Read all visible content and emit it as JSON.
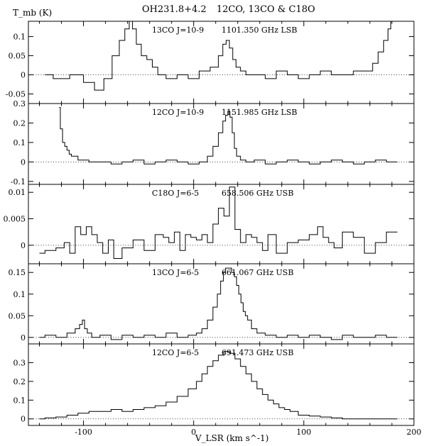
{
  "header": {
    "source": "OH231.8+4.2",
    "lines": "12CO, 13CO & C18O"
  },
  "axes": {
    "xlabel": "V_LSR (km s^-1)",
    "ylabel": "T_mb (K)"
  },
  "chart_data": [
    {
      "type": "line",
      "title": "13CO J=10-9  1101.350 GHz LSB",
      "line": "13CO J=10-9",
      "freq": "1101.350 GHz LSB",
      "xlim": [
        -150,
        200
      ],
      "ylim": [
        -0.075,
        0.14
      ],
      "yticks": [
        -0.05,
        0,
        0.05,
        0.1
      ],
      "yticklabels": [
        "-0.05",
        "0",
        "0.05",
        "0.1"
      ],
      "xticks": [
        -100,
        0,
        100,
        200
      ],
      "baseline": 0,
      "x": [
        -135,
        -120,
        -105,
        -95,
        -85,
        -78,
        -70,
        -65,
        -60,
        -57,
        -54,
        -50,
        -45,
        -40,
        -35,
        -30,
        -20,
        -10,
        0,
        10,
        20,
        25,
        28,
        31,
        34,
        37,
        40,
        45,
        50,
        60,
        70,
        80,
        90,
        100,
        110,
        120,
        130,
        140,
        150,
        160,
        165,
        170,
        175,
        178,
        180
      ],
      "y": [
        0.0,
        -0.01,
        0.0,
        -0.02,
        -0.04,
        -0.01,
        0.05,
        0.09,
        0.12,
        0.14,
        0.12,
        0.08,
        0.05,
        0.04,
        0.02,
        0.0,
        -0.01,
        0.0,
        -0.01,
        0.01,
        0.02,
        0.05,
        0.08,
        0.09,
        0.07,
        0.04,
        0.02,
        0.01,
        0.0,
        0.0,
        -0.01,
        0.01,
        0.0,
        -0.01,
        0.0,
        0.01,
        0.0,
        0.0,
        0.01,
        0.01,
        0.03,
        0.06,
        0.09,
        0.12,
        0.14
      ]
    },
    {
      "type": "line",
      "title": "12CO J=10-9  1151.985 GHz LSB",
      "line": "12CO J=10-9",
      "freq": "1151.985 GHz LSB",
      "xlim": [
        -150,
        200
      ],
      "ylim": [
        -0.115,
        0.3
      ],
      "yticks": [
        -0.1,
        0,
        0.1,
        0.2,
        0.3
      ],
      "yticklabels": [
        "-0.1",
        "0",
        "0.1",
        "0.2",
        "0.3"
      ],
      "xticks": [
        -100,
        0,
        100,
        200
      ],
      "baseline": 0,
      "x": [
        -122,
        -120,
        -118,
        -116,
        -114,
        -112,
        -110,
        -100,
        -90,
        -80,
        -70,
        -60,
        -50,
        -40,
        -30,
        -20,
        -10,
        0,
        10,
        15,
        20,
        25,
        28,
        30,
        32,
        34,
        36,
        38,
        40,
        45,
        50,
        60,
        70,
        80,
        90,
        100,
        110,
        120,
        130,
        140,
        150,
        160,
        170,
        180,
        185
      ],
      "y": [
        0.28,
        0.17,
        0.1,
        0.08,
        0.06,
        0.04,
        0.03,
        0.01,
        0.0,
        0.0,
        -0.01,
        0.0,
        0.01,
        -0.01,
        0.0,
        0.01,
        0.0,
        -0.01,
        0.0,
        0.03,
        0.08,
        0.15,
        0.21,
        0.24,
        0.26,
        0.23,
        0.15,
        0.07,
        0.03,
        0.01,
        0.0,
        0.01,
        -0.01,
        0.0,
        0.01,
        0.0,
        -0.01,
        0.0,
        0.01,
        0.0,
        -0.01,
        0.0,
        0.01,
        0.0,
        0.0
      ]
    },
    {
      "type": "line",
      "title": "C18O J=6-5  658.506 GHz USB",
      "line": "C18O J=6-5",
      "freq": "658.506 GHz USB",
      "xlim": [
        -150,
        200
      ],
      "ylim": [
        -0.0035,
        0.0115
      ],
      "yticks": [
        0,
        0.005,
        0.01
      ],
      "yticklabels": [
        "0",
        "0.005",
        "0.01"
      ],
      "xticks": [
        -100,
        0,
        100,
        200
      ],
      "baseline": 0,
      "x": [
        -140,
        -130,
        -120,
        -115,
        -110,
        -105,
        -100,
        -95,
        -90,
        -85,
        -80,
        -75,
        -70,
        -60,
        -50,
        -40,
        -30,
        -25,
        -20,
        -15,
        -10,
        -5,
        0,
        5,
        10,
        15,
        20,
        25,
        30,
        35,
        40,
        45,
        50,
        55,
        60,
        65,
        70,
        80,
        90,
        100,
        110,
        115,
        120,
        125,
        130,
        140,
        150,
        160,
        170,
        180,
        185
      ],
      "y": [
        -0.0015,
        -0.001,
        -0.0005,
        0.0005,
        -0.0015,
        0.0035,
        0.002,
        0.0035,
        0.002,
        0.0005,
        -0.0015,
        0.001,
        -0.0025,
        -0.0005,
        0.001,
        -0.001,
        0.002,
        0.0015,
        0.0005,
        0.0025,
        -0.001,
        0.002,
        0.0015,
        0.001,
        0.002,
        0.0005,
        0.004,
        0.007,
        0.0055,
        0.011,
        0.003,
        0.0005,
        0.002,
        0.0015,
        0.0005,
        -0.001,
        0.002,
        -0.0015,
        0.0005,
        0.001,
        0.002,
        0.0035,
        0.0015,
        0.0005,
        -0.0005,
        0.0025,
        0.0015,
        -0.0015,
        0.0005,
        0.0025,
        0.0025
      ]
    },
    {
      "type": "line",
      "title": "13CO J=6-5  661.067 GHz USB",
      "line": "13CO J=6-5",
      "freq": "661.067 GHz USB",
      "xlim": [
        -150,
        200
      ],
      "ylim": [
        -0.015,
        0.17
      ],
      "yticks": [
        0,
        0.05,
        0.1,
        0.15
      ],
      "yticklabels": [
        "0",
        "0.05",
        "0.1",
        "0.15"
      ],
      "xticks": [
        -100,
        0,
        100,
        200
      ],
      "baseline": 0,
      "x": [
        -140,
        -130,
        -120,
        -110,
        -105,
        -102,
        -100,
        -98,
        -95,
        -90,
        -80,
        -70,
        -60,
        -50,
        -40,
        -30,
        -20,
        -10,
        0,
        5,
        10,
        15,
        20,
        23,
        26,
        28,
        30,
        33,
        36,
        38,
        40,
        42,
        44,
        46,
        48,
        50,
        55,
        60,
        70,
        80,
        90,
        100,
        110,
        120,
        130,
        140,
        150,
        160,
        170,
        180,
        185
      ],
      "y": [
        0.0,
        0.005,
        0.0,
        0.01,
        0.02,
        0.03,
        0.04,
        0.02,
        0.01,
        0.0,
        0.005,
        -0.005,
        0.005,
        0.0,
        0.005,
        0.0,
        0.01,
        0.0,
        0.005,
        0.01,
        0.02,
        0.04,
        0.07,
        0.1,
        0.13,
        0.15,
        0.16,
        0.16,
        0.15,
        0.14,
        0.12,
        0.1,
        0.08,
        0.06,
        0.05,
        0.04,
        0.02,
        0.01,
        0.005,
        0.0,
        0.005,
        0.0,
        0.005,
        0.0,
        -0.005,
        0.005,
        0.0,
        0.0,
        0.005,
        0.0,
        0.0
      ]
    },
    {
      "type": "line",
      "title": "12CO J=6-5  691.473 GHz USB",
      "line": "12CO J=6-5",
      "freq": "691.473 GHz USB",
      "xlim": [
        -150,
        200
      ],
      "ylim": [
        -0.035,
        0.4
      ],
      "yticks": [
        0,
        0.1,
        0.2,
        0.3
      ],
      "yticklabels": [
        "0",
        "0.1",
        "0.2",
        "0.3"
      ],
      "xticks": [
        -100,
        0,
        100,
        200
      ],
      "baseline": 0,
      "x": [
        -140,
        -130,
        -120,
        -110,
        -100,
        -90,
        -80,
        -70,
        -60,
        -50,
        -40,
        -30,
        -20,
        -10,
        0,
        5,
        10,
        15,
        20,
        25,
        30,
        35,
        40,
        45,
        50,
        55,
        60,
        65,
        70,
        75,
        80,
        85,
        90,
        100,
        110,
        120,
        130,
        140,
        150,
        160,
        170,
        185
      ],
      "y": [
        0.0,
        0.005,
        0.01,
        0.02,
        0.03,
        0.04,
        0.04,
        0.05,
        0.04,
        0.05,
        0.06,
        0.07,
        0.09,
        0.12,
        0.16,
        0.2,
        0.24,
        0.28,
        0.31,
        0.34,
        0.36,
        0.35,
        0.32,
        0.28,
        0.24,
        0.2,
        0.16,
        0.13,
        0.1,
        0.08,
        0.06,
        0.05,
        0.04,
        0.02,
        0.015,
        0.01,
        0.005,
        0.0,
        0.0,
        0.0,
        0.0,
        0.0
      ]
    }
  ],
  "xaxis": {
    "ticks": [
      -100,
      0,
      100,
      200
    ],
    "ticklabels": [
      "-100",
      "0",
      "100",
      "200"
    ]
  }
}
